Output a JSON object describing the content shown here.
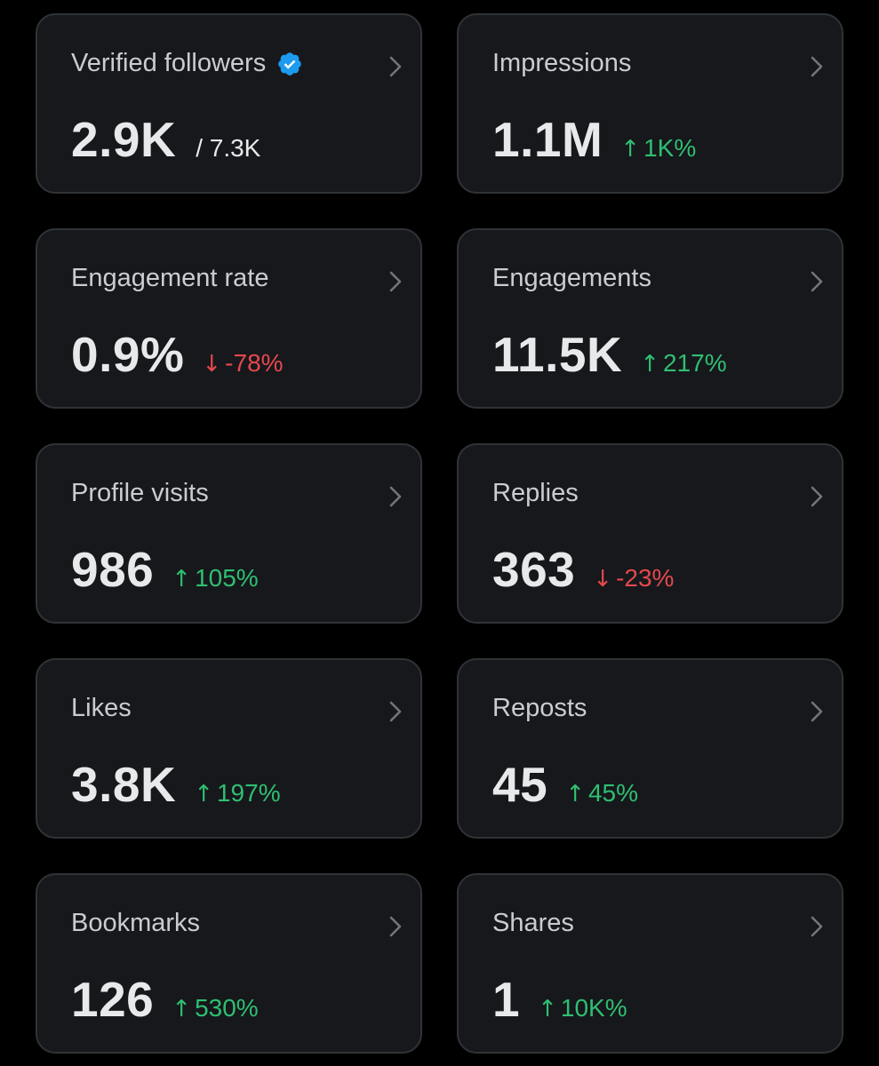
{
  "colors": {
    "background": "#000000",
    "card_background": "#16181c",
    "card_border": "#2f3336",
    "title_text": "#c9cdd1",
    "value_text": "#e7e9ea",
    "positive": "#2fbf71",
    "negative": "#e5484d",
    "verified_badge": "#1d9bf0"
  },
  "cards": [
    {
      "title": "Verified followers",
      "value": "2.9K",
      "subvalue": "/ 7.3K",
      "icon": "verified-badge-icon"
    },
    {
      "title": "Impressions",
      "value": "1.1M",
      "change": "1K%",
      "direction": "up"
    },
    {
      "title": "Engagement rate",
      "value": "0.9%",
      "change": "-78%",
      "direction": "down"
    },
    {
      "title": "Engagements",
      "value": "11.5K",
      "change": "217%",
      "direction": "up"
    },
    {
      "title": "Profile visits",
      "value": "986",
      "change": "105%",
      "direction": "up"
    },
    {
      "title": "Replies",
      "value": "363",
      "change": "-23%",
      "direction": "down"
    },
    {
      "title": "Likes",
      "value": "3.8K",
      "change": "197%",
      "direction": "up"
    },
    {
      "title": "Reposts",
      "value": "45",
      "change": "45%",
      "direction": "up"
    },
    {
      "title": "Bookmarks",
      "value": "126",
      "change": "530%",
      "direction": "up"
    },
    {
      "title": "Shares",
      "value": "1",
      "change": "10K%",
      "direction": "up"
    }
  ],
  "arrows": {
    "up": "↑",
    "down": "↓"
  }
}
